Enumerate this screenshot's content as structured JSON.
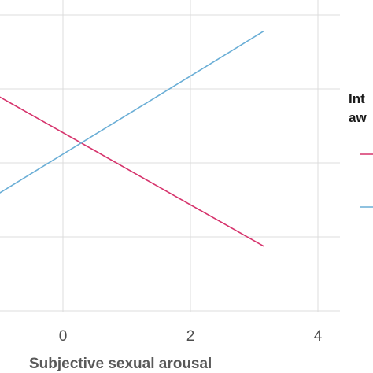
{
  "chart_data": {
    "type": "line",
    "xlabel": "Subjective sexual arousal",
    "ylabel": "",
    "xlim": [
      -1.0,
      4.2
    ],
    "x_ticks": [
      0,
      2,
      4
    ],
    "ylim": [
      0,
      1
    ],
    "grid": true,
    "legend": {
      "placement": "right",
      "title_lines": [
        "Int",
        "aw"
      ]
    },
    "series": [
      {
        "color": "#d6336c",
        "x": [
          -1.0,
          3.15
        ],
        "y": [
          0.69,
          0.21
        ]
      },
      {
        "color": "#6aaed6",
        "x": [
          -1.0,
          3.15
        ],
        "y": [
          0.38,
          0.9
        ]
      }
    ]
  }
}
